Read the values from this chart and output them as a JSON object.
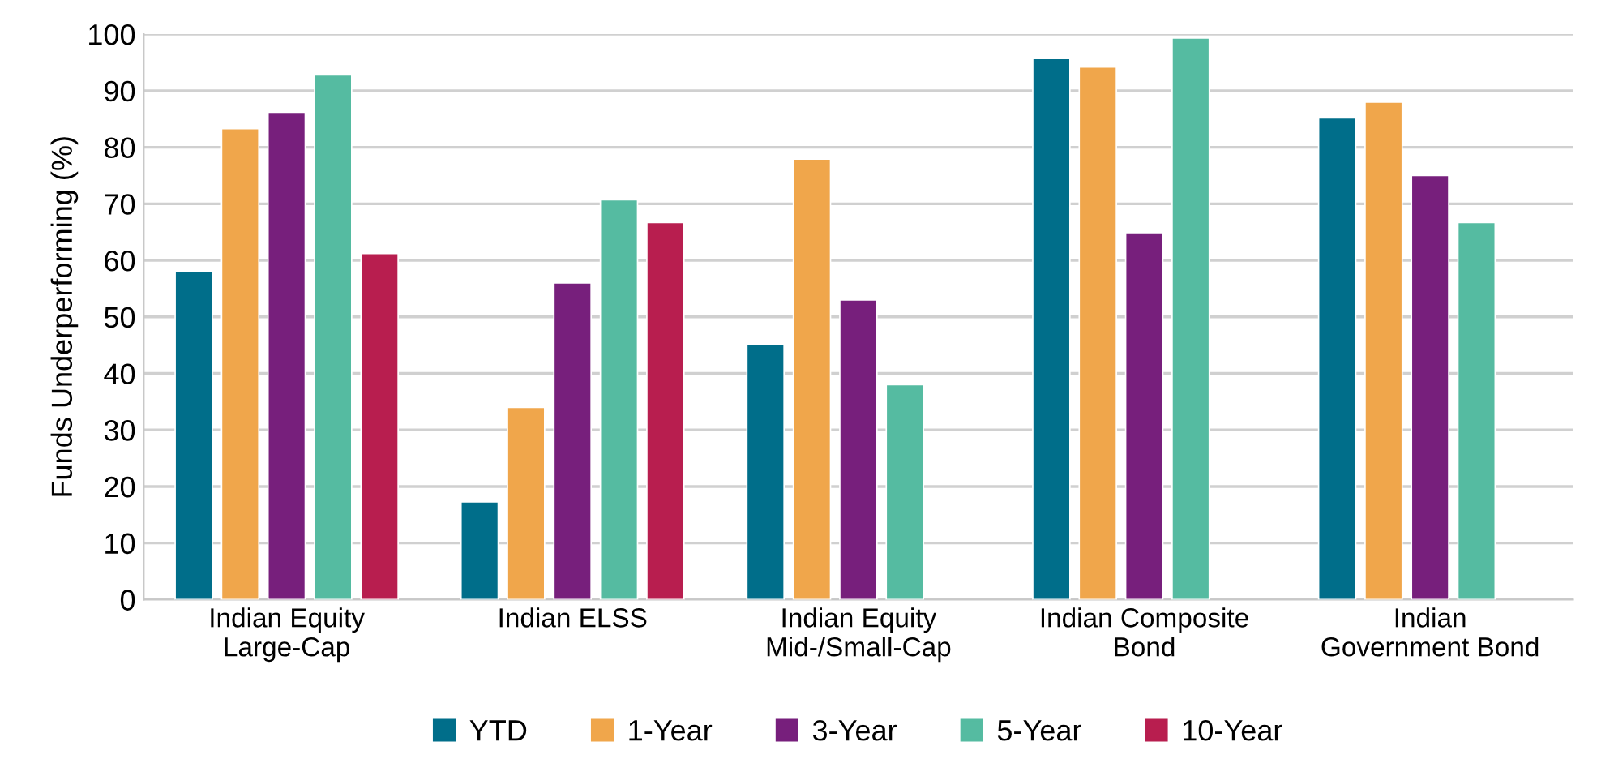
{
  "chart_data": {
    "type": "bar",
    "ylabel": "Funds Underperforming (%)",
    "categories": [
      "Indian Equity\nLarge-Cap",
      "Indian ELSS",
      "Indian Equity\nMid-/Small-Cap",
      "Indian Composite\nBond",
      "Indian\nGovernment Bond"
    ],
    "series": [
      {
        "name": "YTD",
        "color": "#006e8a",
        "values": [
          58.0,
          17.3,
          45.2,
          95.7,
          85.2
        ]
      },
      {
        "name": "1-Year",
        "color": "#f0a64b",
        "values": [
          83.3,
          34.0,
          77.9,
          94.2,
          88.0
        ]
      },
      {
        "name": "3-Year",
        "color": "#771f7c",
        "values": [
          86.2,
          56.0,
          53.0,
          64.9,
          75.0
        ]
      },
      {
        "name": "5-Year",
        "color": "#55bba1",
        "values": [
          92.8,
          70.7,
          38.0,
          99.3,
          66.7
        ]
      },
      {
        "name": "10-Year",
        "color": "#b81e4f",
        "values": [
          61.2,
          66.7,
          null,
          null,
          null
        ]
      }
    ],
    "ylim": [
      0,
      100
    ],
    "yticks": [
      0,
      10,
      20,
      30,
      40,
      50,
      60,
      70,
      80,
      90,
      100
    ],
    "grid": "y",
    "legend": "bottom"
  }
}
